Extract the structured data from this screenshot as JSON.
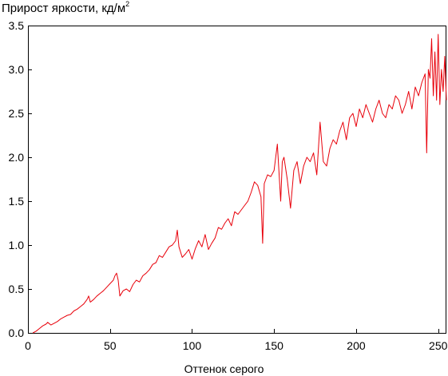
{
  "chart_data": {
    "type": "line",
    "title_main": "Прирост яркости, кд/м",
    "title_sup": "2",
    "xlabel": "Оттенок серого",
    "ylabel": "",
    "xlim": [
      0,
      255
    ],
    "ylim": [
      0,
      3.5
    ],
    "xticks": [
      0,
      50,
      100,
      150,
      200,
      250
    ],
    "yticks": [
      "0.0",
      "0.5",
      "1.0",
      "1.5",
      "2.0",
      "2.5",
      "3.0",
      "3.5"
    ],
    "grid": false,
    "line_color": "#e8000a",
    "series": [
      {
        "x": [
          3,
          5,
          7,
          9,
          11,
          12,
          14,
          16,
          18,
          20,
          22,
          24,
          26,
          28,
          30,
          32,
          34,
          36,
          37,
          38,
          40,
          42,
          44,
          46,
          48,
          50,
          52,
          53,
          54,
          55,
          56,
          58,
          60,
          62,
          64,
          66,
          68,
          70,
          72,
          74,
          76,
          78,
          80,
          82,
          84,
          86,
          88,
          90,
          91,
          92,
          94,
          96,
          98,
          100,
          102,
          104,
          106,
          108,
          110,
          112,
          114,
          116,
          118,
          120,
          122,
          124,
          126,
          128,
          130,
          132,
          134,
          136,
          138,
          140,
          142,
          143,
          144,
          146,
          148,
          150,
          152,
          154,
          155,
          156,
          158,
          160,
          162,
          164,
          166,
          168,
          170,
          172,
          174,
          176,
          178,
          180,
          182,
          184,
          186,
          188,
          190,
          192,
          194,
          196,
          198,
          200,
          202,
          204,
          206,
          208,
          210,
          212,
          214,
          216,
          218,
          220,
          222,
          224,
          226,
          228,
          230,
          232,
          234,
          236,
          238,
          240,
          242,
          243,
          244,
          245,
          246,
          247,
          248,
          249,
          250,
          251,
          252,
          253,
          254,
          255
        ],
        "values": [
          0.0,
          0.02,
          0.05,
          0.08,
          0.1,
          0.12,
          0.09,
          0.11,
          0.13,
          0.16,
          0.18,
          0.2,
          0.21,
          0.25,
          0.27,
          0.3,
          0.33,
          0.38,
          0.42,
          0.35,
          0.38,
          0.42,
          0.45,
          0.48,
          0.52,
          0.56,
          0.6,
          0.65,
          0.68,
          0.6,
          0.42,
          0.48,
          0.5,
          0.47,
          0.55,
          0.6,
          0.58,
          0.65,
          0.68,
          0.72,
          0.78,
          0.8,
          0.88,
          0.86,
          0.92,
          0.98,
          1.0,
          1.05,
          1.17,
          0.98,
          0.86,
          0.9,
          0.95,
          0.84,
          0.96,
          1.05,
          0.98,
          1.12,
          0.95,
          1.02,
          1.08,
          1.2,
          1.18,
          1.25,
          1.3,
          1.22,
          1.38,
          1.35,
          1.4,
          1.45,
          1.5,
          1.6,
          1.72,
          1.68,
          1.55,
          1.02,
          1.7,
          1.8,
          1.78,
          1.85,
          2.15,
          1.5,
          1.95,
          2.0,
          1.75,
          1.42,
          1.85,
          1.95,
          1.7,
          1.9,
          2.0,
          1.95,
          2.05,
          1.8,
          2.4,
          1.95,
          1.9,
          2.1,
          2.2,
          2.15,
          2.3,
          2.4,
          2.2,
          2.45,
          2.5,
          2.35,
          2.55,
          2.45,
          2.6,
          2.5,
          2.4,
          2.55,
          2.65,
          2.5,
          2.45,
          2.6,
          2.55,
          2.7,
          2.65,
          2.5,
          2.6,
          2.75,
          2.55,
          2.8,
          2.7,
          2.85,
          2.95,
          2.05,
          3.0,
          2.9,
          3.35,
          2.7,
          3.2,
          2.65,
          3.4,
          2.6,
          3.0,
          2.75,
          3.15,
          2.65
        ]
      }
    ]
  }
}
